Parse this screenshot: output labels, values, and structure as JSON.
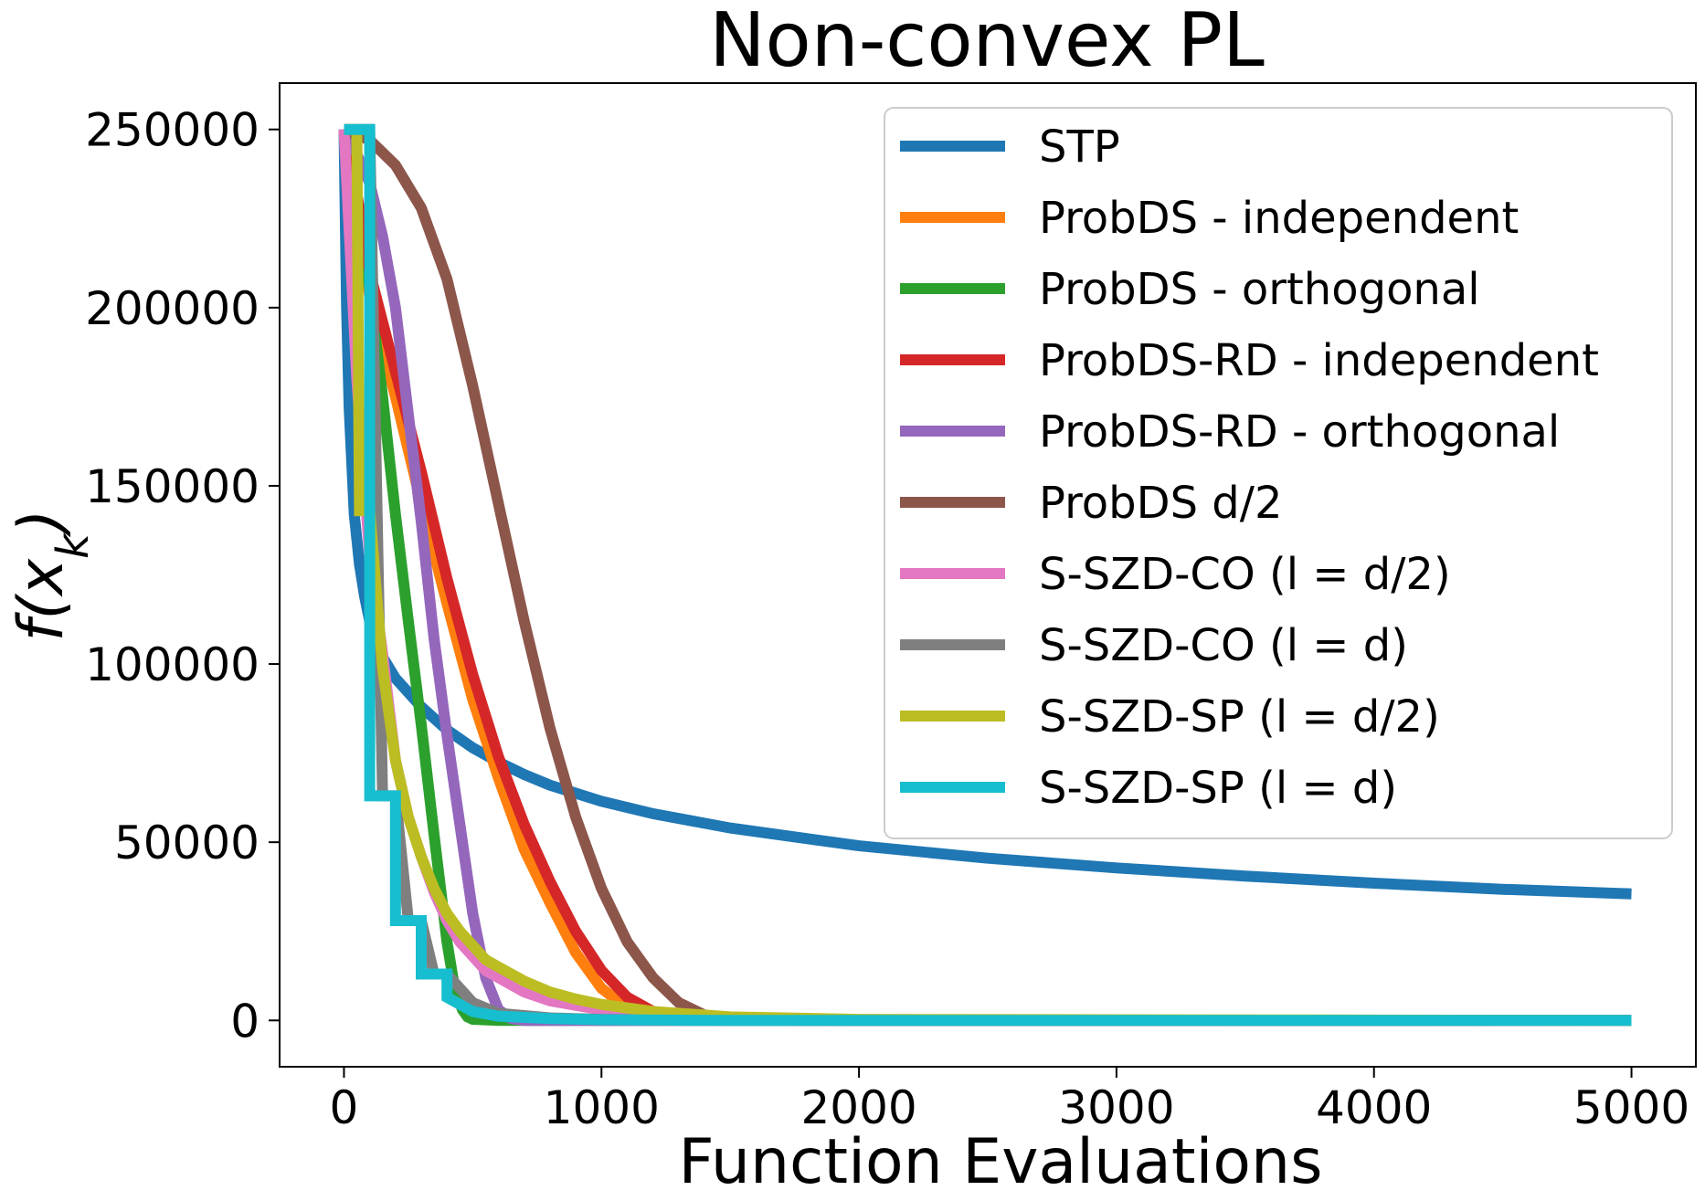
{
  "chart_data": {
    "type": "line",
    "title": "Non-convex PL",
    "xlabel": "Function Evaluations",
    "ylabel": "f(x_k)",
    "xlim": [
      -250,
      5250
    ],
    "ylim": [
      -13000,
      263000
    ],
    "xticks": [
      0,
      1000,
      2000,
      3000,
      4000,
      5000
    ],
    "xtick_labels": [
      "0",
      "1000",
      "2000",
      "3000",
      "4000",
      "5000"
    ],
    "yticks": [
      0,
      50000,
      100000,
      150000,
      200000,
      250000
    ],
    "ytick_labels": [
      "0",
      "50000",
      "100000",
      "150000",
      "200000",
      "250000"
    ],
    "grid": false,
    "legend_position": "top-right",
    "series": [
      {
        "name": "STP",
        "color": "#1f77b4",
        "x": [
          0,
          10,
          20,
          40,
          60,
          80,
          100,
          150,
          200,
          300,
          400,
          500,
          600,
          700,
          800,
          1000,
          1200,
          1500,
          2000,
          2500,
          3000,
          3500,
          4000,
          4500,
          5000
        ],
        "y": [
          250000,
          200000,
          172000,
          142000,
          128000,
          119000,
          112000,
          102000,
          96000,
          88000,
          81500,
          76500,
          72500,
          69000,
          66000,
          61500,
          58000,
          54000,
          49000,
          45500,
          42800,
          40500,
          38500,
          36800,
          35500
        ]
      },
      {
        "name": "ProbDS - independent",
        "color": "#ff7f0e",
        "x": [
          0,
          50,
          100,
          200,
          300,
          400,
          500,
          600,
          700,
          800,
          900,
          1000,
          1100,
          1200,
          1400,
          2000,
          5000
        ],
        "y": [
          250000,
          228000,
          203000,
          175000,
          145000,
          117000,
          90000,
          68000,
          48000,
          33000,
          19000,
          9000,
          3500,
          1200,
          200,
          0,
          0
        ]
      },
      {
        "name": "ProbDS - orthogonal",
        "color": "#2ca02c",
        "x": [
          0,
          50,
          100,
          150,
          200,
          250,
          300,
          350,
          400,
          430,
          460,
          480,
          500,
          600,
          5000
        ],
        "y": [
          250000,
          232000,
          205000,
          175000,
          142000,
          112000,
          83000,
          52000,
          22000,
          9000,
          3000,
          1000,
          300,
          0,
          0
        ]
      },
      {
        "name": "ProbDS-RD - independent",
        "color": "#d62728",
        "x": [
          0,
          50,
          100,
          200,
          300,
          400,
          500,
          600,
          700,
          800,
          900,
          1000,
          1100,
          1200,
          1300,
          1500,
          2000,
          5000
        ],
        "y": [
          250000,
          232000,
          210000,
          182000,
          154000,
          124000,
          97000,
          74000,
          55000,
          39000,
          25000,
          14000,
          6500,
          2500,
          800,
          100,
          0,
          0
        ]
      },
      {
        "name": "ProbDS-RD - orthogonal",
        "color": "#9467bd",
        "x": [
          0,
          50,
          100,
          150,
          200,
          250,
          300,
          350,
          400,
          450,
          500,
          550,
          600,
          650,
          700,
          5000
        ],
        "y": [
          250000,
          243000,
          235000,
          220000,
          200000,
          170000,
          140000,
          107000,
          80000,
          55000,
          30000,
          12000,
          3000,
          500,
          0,
          0
        ]
      },
      {
        "name": "ProbDS d/2",
        "color": "#8c564b",
        "x": [
          0,
          100,
          200,
          300,
          400,
          500,
          600,
          700,
          800,
          900,
          1000,
          1100,
          1200,
          1300,
          1400,
          1450,
          1500,
          2000,
          5000
        ],
        "y": [
          250000,
          247000,
          240000,
          228000,
          208000,
          178000,
          145000,
          112000,
          82000,
          57000,
          37000,
          22000,
          12000,
          5000,
          1500,
          700,
          200,
          0,
          0
        ]
      },
      {
        "name": "S-SZD-CO (l = d/2)",
        "color": "#e377c2",
        "x": [
          0,
          50,
          100,
          150,
          200,
          250,
          300,
          350,
          400,
          450,
          500,
          550,
          600,
          700,
          800,
          1000,
          1200,
          1500,
          2000,
          5000
        ],
        "y": [
          250000,
          180000,
          130000,
          103000,
          73000,
          57000,
          46000,
          36000,
          28000,
          22000,
          18000,
          14000,
          12000,
          8000,
          5500,
          3000,
          1500,
          500,
          100,
          0
        ]
      },
      {
        "name": "S-SZD-CO (l = d)",
        "color": "#7f7f7f",
        "x": [
          0,
          50,
          100,
          150,
          200,
          250,
          300,
          350,
          400,
          500,
          600,
          800,
          1000,
          1500,
          5000
        ],
        "y": [
          250000,
          250000,
          250000,
          63000,
          63000,
          28000,
          28000,
          13000,
          13000,
          5000,
          2000,
          700,
          300,
          0,
          0
        ]
      },
      {
        "name": "S-SZD-SP (l = d/2)",
        "color": "#bcbd22",
        "x": [
          0,
          50,
          60,
          100,
          150,
          200,
          250,
          300,
          350,
          400,
          450,
          500,
          550,
          600,
          650,
          700,
          800,
          900,
          1000,
          1200,
          1500,
          2000,
          5000
        ],
        "y": [
          250000,
          250000,
          143000,
          143000,
          99000,
          73000,
          57000,
          46000,
          37000,
          30000,
          25000,
          21000,
          17000,
          15000,
          13000,
          11000,
          8000,
          6000,
          4500,
          2500,
          1000,
          300,
          0
        ]
      },
      {
        "name": "S-SZD-SP (l = d)",
        "color": "#17becf",
        "x": [
          0,
          100,
          100,
          200,
          200,
          300,
          300,
          400,
          400,
          500,
          600,
          800,
          1000,
          1500,
          5000
        ],
        "y": [
          250000,
          250000,
          63000,
          63000,
          28000,
          28000,
          13000,
          13000,
          6500,
          2500,
          1200,
          500,
          200,
          0,
          0
        ]
      }
    ]
  },
  "legend": {
    "entries": [
      {
        "label": "STP",
        "color": "#1f77b4"
      },
      {
        "label": "ProbDS - independent",
        "color": "#ff7f0e"
      },
      {
        "label": "ProbDS - orthogonal",
        "color": "#2ca02c"
      },
      {
        "label": "ProbDS-RD - independent",
        "color": "#d62728"
      },
      {
        "label": "ProbDS-RD - orthogonal",
        "color": "#9467bd"
      },
      {
        "label": "ProbDS d/2",
        "color": "#8c564b"
      },
      {
        "label": "S-SZD-CO (l = d/2)",
        "color": "#e377c2"
      },
      {
        "label": "S-SZD-CO (l = d)",
        "color": "#7f7f7f"
      },
      {
        "label": "S-SZD-SP (l = d/2)",
        "color": "#bcbd22"
      },
      {
        "label": "S-SZD-SP (l = d)",
        "color": "#17becf"
      }
    ]
  }
}
